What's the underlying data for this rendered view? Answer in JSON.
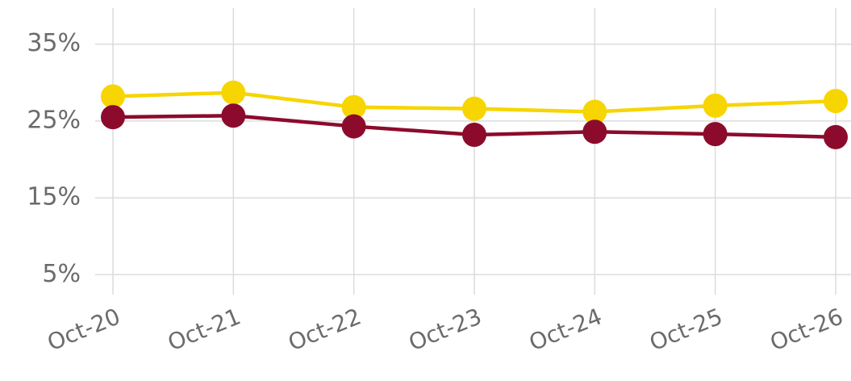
{
  "chart_data": {
    "type": "line",
    "categories": [
      "Oct-20",
      "Oct-21",
      "Oct-22",
      "Oct-23",
      "Oct-24",
      "Oct-25",
      "Oct-26"
    ],
    "series": [
      {
        "color": "#f6d500",
        "values": [
          28.2,
          28.7,
          26.8,
          26.6,
          26.2,
          27.0,
          27.6
        ]
      },
      {
        "color": "#8c0b2c",
        "values": [
          25.5,
          25.7,
          24.3,
          23.2,
          23.6,
          23.3,
          22.9
        ]
      }
    ],
    "ylim": [
      2.4,
      39.7
    ],
    "yticks": [
      {
        "value": 5,
        "label": "5%"
      },
      {
        "value": 15,
        "label": "15%"
      },
      {
        "value": 25,
        "label": "25%"
      },
      {
        "value": 35,
        "label": "35%"
      }
    ],
    "grid": true
  }
}
